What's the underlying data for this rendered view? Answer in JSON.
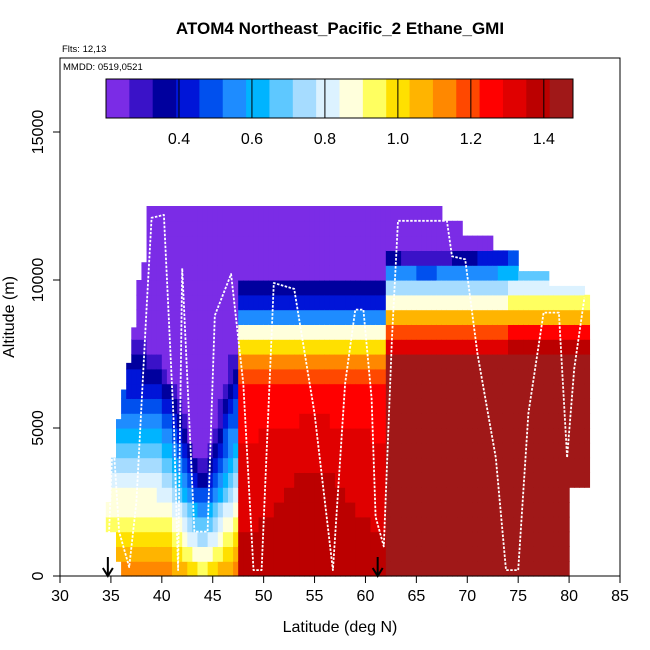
{
  "chart_data": {
    "type": "heatmap",
    "title": "ATOM4 Northeast_Pacific_2 Ethane_GMI",
    "flights_label": "Flts: 12,13",
    "dates_label": "MMDD: 0519,0521",
    "xlabel": "Latitude (deg N)",
    "ylabel": "Altitude (m)",
    "xlim": [
      30,
      85
    ],
    "ylim": [
      0,
      17500
    ],
    "x_ticks": [
      30,
      35,
      40,
      45,
      50,
      55,
      60,
      65,
      70,
      75,
      80,
      85
    ],
    "y_ticks": [
      0,
      5000,
      10000,
      15000
    ],
    "colorbar": {
      "range": [
        0.2,
        1.48
      ],
      "ticks": [
        0.4,
        0.6,
        0.8,
        1.0,
        1.2,
        1.4
      ],
      "tick_labels": [
        "0.4",
        "0.6",
        "0.8",
        "1.0",
        "1.2",
        "1.4"
      ],
      "colors": [
        "#7b2ce6",
        "#3a12c8",
        "#00009e",
        "#0015d8",
        "#0050ee",
        "#1e8cff",
        "#00b4ff",
        "#5ec8ff",
        "#a6dcff",
        "#dcf2ff",
        "#ffffdc",
        "#ffff60",
        "#ffe000",
        "#ffb400",
        "#ff8800",
        "#ff4800",
        "#ff0000",
        "#e00000",
        "#bb0000",
        "#a01818"
      ]
    },
    "flight_track": [
      [
        34.8,
        1300
      ],
      [
        35.2,
        4800
      ],
      [
        35.8,
        1500
      ],
      [
        36.8,
        300
      ],
      [
        37.5,
        2500
      ],
      [
        38.5,
        9000
      ],
      [
        39.0,
        12100
      ],
      [
        40.2,
        12200
      ],
      [
        41.2,
        5000
      ],
      [
        41.6,
        200
      ],
      [
        42.0,
        10400
      ],
      [
        43.2,
        1500
      ],
      [
        44.5,
        1500
      ],
      [
        45.2,
        8800
      ],
      [
        46.8,
        10200
      ],
      [
        48.0,
        6500
      ],
      [
        49.0,
        200
      ],
      [
        49.8,
        200
      ],
      [
        51.0,
        9900
      ],
      [
        53.0,
        9700
      ],
      [
        55.0,
        5500
      ],
      [
        56.8,
        200
      ],
      [
        58.0,
        6500
      ],
      [
        59.0,
        9000
      ],
      [
        59.8,
        9000
      ],
      [
        60.6,
        6000
      ],
      [
        61.0,
        2000
      ],
      [
        61.8,
        1000
      ],
      [
        62.6,
        8000
      ],
      [
        63.2,
        12000
      ],
      [
        68.0,
        12000
      ],
      [
        68.5,
        10800
      ],
      [
        69.8,
        10700
      ],
      [
        71.0,
        7500
      ],
      [
        72.8,
        4000
      ],
      [
        73.8,
        200
      ],
      [
        75.0,
        200
      ],
      [
        76.0,
        5500
      ],
      [
        77.5,
        8900
      ],
      [
        79.0,
        8900
      ],
      [
        79.8,
        4000
      ],
      [
        80.5,
        7000
      ],
      [
        81.5,
        9400
      ]
    ],
    "arrows_latitude": [
      34.7,
      61.2
    ],
    "grid": false
  }
}
